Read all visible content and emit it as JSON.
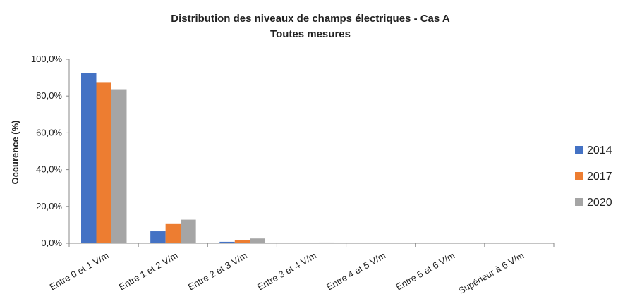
{
  "chart_data": {
    "type": "bar",
    "title": "Distribution des niveaux de champs électriques - Cas A",
    "subtitle": "Toutes mesures",
    "xlabel": "",
    "ylabel": "Occurence (%)",
    "ylim": [
      0,
      100
    ],
    "yticks": [
      "0,0%",
      "20,0%",
      "40,0%",
      "60,0%",
      "80,0%",
      "100,0%"
    ],
    "categories": [
      "Entre 0 et 1 V/m",
      "Entre 1 et 2 V/m",
      "Entre 2 et 3 V/m",
      "Entre 3 et 4 V/m",
      "Entre 4 et 5 V/m",
      "Entre 5 et 6 V/m",
      "Supérieur à 6 V/m"
    ],
    "series": [
      {
        "name": "2014",
        "color": "#4472C4",
        "values": [
          92.5,
          6.5,
          0.8,
          0.1,
          0.0,
          0.0,
          0.0
        ]
      },
      {
        "name": "2017",
        "color": "#ED7D31",
        "values": [
          87.2,
          10.8,
          1.7,
          0.2,
          0.0,
          0.0,
          0.0
        ]
      },
      {
        "name": "2020",
        "color": "#A5A5A5",
        "values": [
          83.7,
          12.8,
          2.6,
          0.4,
          0.1,
          0.0,
          0.0
        ]
      }
    ],
    "legend_position": "right",
    "grid": false
  }
}
